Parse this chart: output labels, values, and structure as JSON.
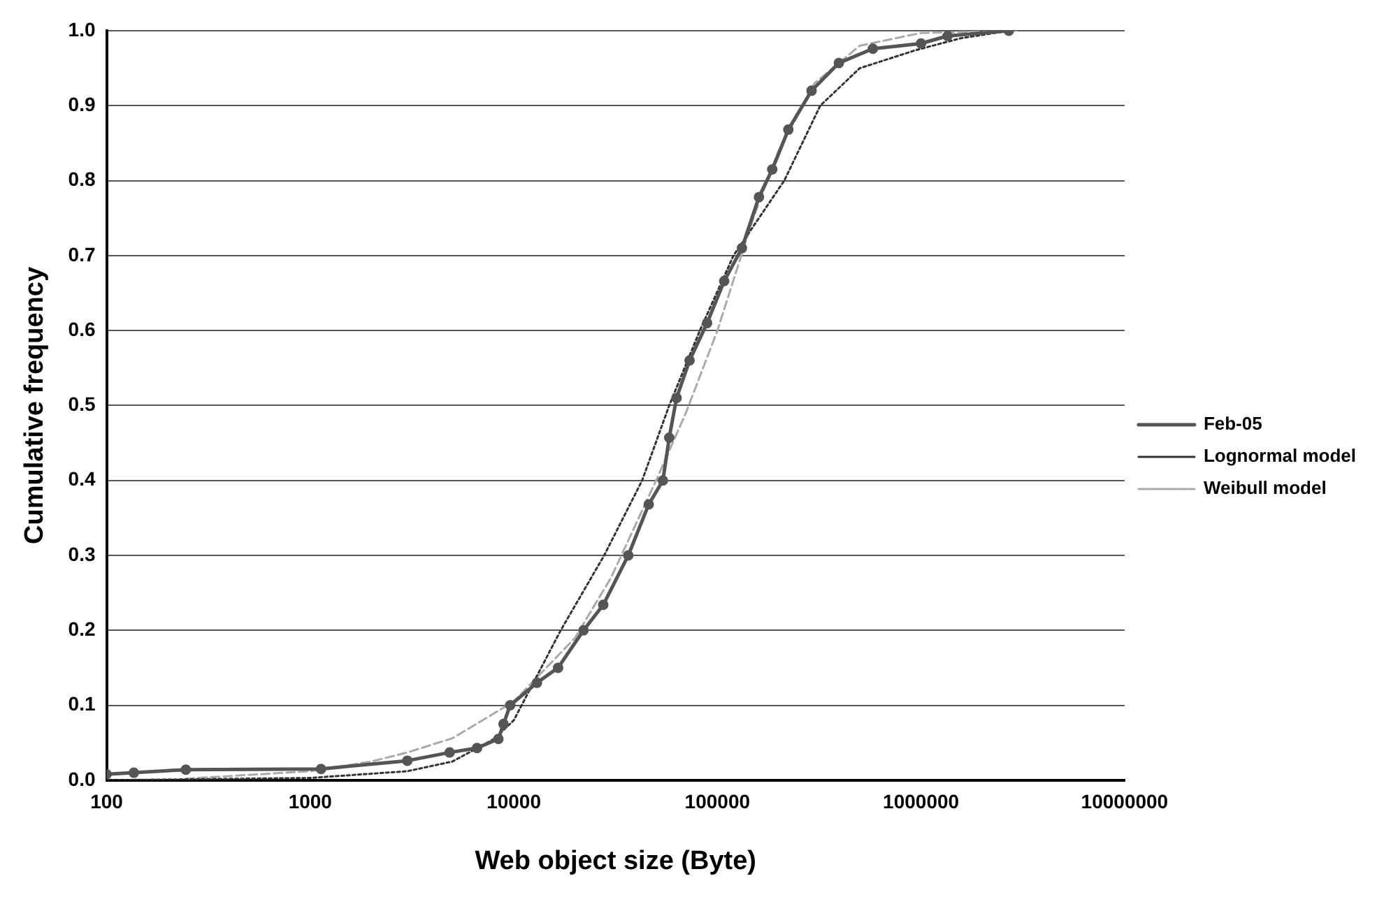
{
  "chart_data": {
    "type": "line",
    "xlabel": "Web object size (Byte)",
    "ylabel": "Cumulative frequency",
    "log": "x",
    "grid": "y",
    "legend": "right",
    "xlim": [
      100,
      10000000
    ],
    "xticks": [
      100,
      1000,
      10000,
      100000,
      1000000,
      10000000
    ],
    "ylim": [
      0,
      1
    ],
    "yticks": [
      {
        "value": 0,
        "label": "0.0"
      },
      0.1,
      0.2,
      0.3,
      0.4,
      0.5,
      0.6,
      0.7,
      0.8,
      0.9,
      {
        "value": 1,
        "label": "1.0"
      }
    ],
    "series": [
      {
        "name": "Feb-05",
        "color": "#555555",
        "marker": "circle",
        "line_style": "solid",
        "x": [
          100,
          136,
          245,
          1130,
          3000,
          4840,
          6600,
          8400,
          8900,
          9600,
          13000,
          16500,
          22000,
          27500,
          36500,
          46000,
          54000,
          58000,
          63000,
          73000,
          89000,
          108000,
          132000,
          160000,
          186000,
          223000,
          290000,
          395000,
          580000,
          1000000,
          1350000,
          2700000
        ],
        "values": [
          0.008,
          0.01,
          0.014,
          0.015,
          0.026,
          0.037,
          0.043,
          0.055,
          0.075,
          0.1,
          0.13,
          0.15,
          0.2,
          0.234,
          0.3,
          0.368,
          0.4,
          0.457,
          0.51,
          0.56,
          0.61,
          0.666,
          0.71,
          0.778,
          0.815,
          0.868,
          0.92,
          0.957,
          0.976,
          0.983,
          0.993,
          1.0
        ]
      },
      {
        "name": "Lognormal model",
        "color": "#333333",
        "marker": "none",
        "line_style": "dotted",
        "x": [
          100,
          1000,
          3000,
          5000,
          8000,
          10000,
          17000,
          27800,
          42700,
          58000,
          82000,
          120000,
          213000,
          320000,
          500000,
          940000,
          1570000,
          2700000
        ],
        "values": [
          0.0,
          0.003,
          0.012,
          0.025,
          0.055,
          0.08,
          0.2,
          0.3,
          0.4,
          0.5,
          0.6,
          0.7,
          0.8,
          0.9,
          0.95,
          0.974,
          0.99,
          1.0
        ]
      },
      {
        "name": "Weibull model",
        "color": "#aaaaaa",
        "marker": "none",
        "line_style": "dashed",
        "x": [
          245,
          1000,
          2000,
          3000,
          5000,
          10000,
          20000,
          30000,
          50000,
          70000,
          100000,
          150000,
          200000,
          300000,
          500000,
          1000000,
          3000000
        ],
        "values": [
          0.002,
          0.012,
          0.025,
          0.037,
          0.056,
          0.105,
          0.19,
          0.27,
          0.4,
          0.49,
          0.6,
          0.75,
          0.84,
          0.93,
          0.98,
          0.997,
          1.0
        ]
      }
    ]
  }
}
